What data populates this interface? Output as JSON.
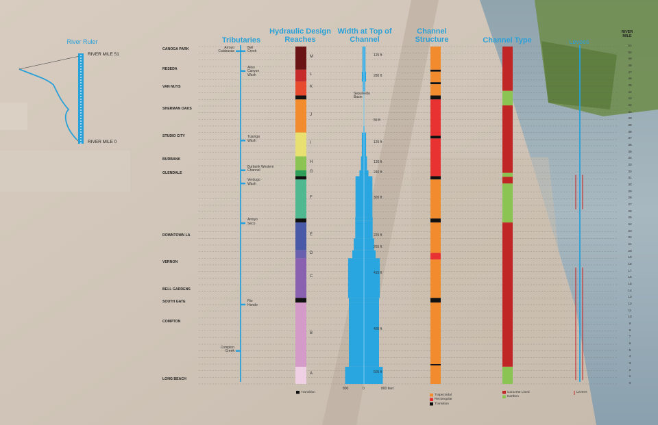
{
  "headers": {
    "river_ruler": "River Ruler",
    "tributaries": "Tributaries",
    "hydraulic": "Hydraulic Design\nReaches",
    "width": "Width at Top of\nChannel",
    "structure": "Channel\nStructure",
    "type": "Channel Type",
    "levees": "Levees",
    "river_mile": "RIVER\nMILE"
  },
  "ruler": {
    "top_label": "RIVER MILE 51",
    "bottom_label": "RIVER MILE 0"
  },
  "cities": [
    {
      "name": "CANOGA PARK",
      "mile": 50.5
    },
    {
      "name": "RESEDA",
      "mile": 47.5
    },
    {
      "name": "VAN NUYS",
      "mile": 44.8
    },
    {
      "name": "SHERMAN OAKS",
      "mile": 41.5
    },
    {
      "name": "STUDIO CITY",
      "mile": 37.3
    },
    {
      "name": "BURBANK",
      "mile": 33.8
    },
    {
      "name": "GLENDALE",
      "mile": 31.8
    },
    {
      "name": "DOWNTOWN LA",
      "mile": 22.3
    },
    {
      "name": "VERNON",
      "mile": 18.3
    },
    {
      "name": "BELL GARDENS",
      "mile": 14.2
    },
    {
      "name": "SOUTH GATE",
      "mile": 12.3
    },
    {
      "name": "COMPTON",
      "mile": 9.3
    },
    {
      "name": "LONG BEACH",
      "mile": 0.6
    }
  ],
  "tributaries": [
    {
      "name": "Arroyo\nCalabasas",
      "mile": 50.3,
      "side": "left"
    },
    {
      "name": "Bell\nCreek",
      "mile": 50.3,
      "side": "right"
    },
    {
      "name": "Aliso\nCanyon\nWash",
      "mile": 47.3,
      "side": "right"
    },
    {
      "name": "Tujunga\nWash",
      "mile": 36.8,
      "side": "right"
    },
    {
      "name": "Burbank Western\nChannel",
      "mile": 32.3,
      "side": "right"
    },
    {
      "name": "Verdugo\nWash",
      "mile": 30.3,
      "side": "right"
    },
    {
      "name": "Arroyo\nSeco",
      "mile": 24.3,
      "side": "right"
    },
    {
      "name": "Rio\nHondo",
      "mile": 12.0,
      "side": "right"
    },
    {
      "name": "Compton\nCreek",
      "mile": 5.0,
      "side": "left"
    }
  ],
  "chart_data": {
    "type": "table",
    "mile_range": [
      0,
      51
    ],
    "hydraulic_reaches": [
      {
        "label": "M",
        "from": 51,
        "to": 47.5,
        "color": "#6b1416"
      },
      {
        "label": "L",
        "from": 47.5,
        "to": 45.7,
        "color": "#c62a2a"
      },
      {
        "label": "K",
        "from": 45.7,
        "to": 43.6,
        "color": "#e84a2e"
      },
      {
        "label": "",
        "from": 43.6,
        "to": 43.0,
        "color": "#111111"
      },
      {
        "label": "J",
        "from": 43.0,
        "to": 38.0,
        "color": "#f28a2e"
      },
      {
        "label": "I",
        "from": 38.0,
        "to": 34.4,
        "color": "#e8e070"
      },
      {
        "label": "H",
        "from": 34.4,
        "to": 32.3,
        "color": "#8cc454"
      },
      {
        "label": "G",
        "from": 32.3,
        "to": 31.4,
        "color": "#2e9e58"
      },
      {
        "label": "",
        "from": 31.4,
        "to": 30.9,
        "color": "#111111"
      },
      {
        "label": "F",
        "from": 30.9,
        "to": 25.0,
        "color": "#4fb890"
      },
      {
        "label": "",
        "from": 25.0,
        "to": 24.4,
        "color": "#111111"
      },
      {
        "label": "E",
        "from": 24.4,
        "to": 20.2,
        "color": "#4a58a8"
      },
      {
        "label": "D",
        "from": 20.2,
        "to": 19.0,
        "color": "#6a60b0"
      },
      {
        "label": "C",
        "from": 19.0,
        "to": 13.0,
        "color": "#8a60b0"
      },
      {
        "label": "",
        "from": 13.0,
        "to": 12.3,
        "color": "#111111"
      },
      {
        "label": "B",
        "from": 12.3,
        "to": 2.6,
        "color": "#d49ac8"
      },
      {
        "label": "A",
        "from": 2.6,
        "to": 0,
        "color": "#f0d0e4"
      }
    ],
    "channel_width": [
      {
        "from": 51,
        "to": 47.2,
        "half_ft": 20
      },
      {
        "from": 47.2,
        "to": 45.7,
        "half_ft": 28
      },
      {
        "from": 45.7,
        "to": 44.2,
        "half_ft": 16
      },
      {
        "from": 44.2,
        "to": 39.0,
        "half_ft": 5
      },
      {
        "from": 39.0,
        "to": 38.0,
        "half_ft": 8
      },
      {
        "from": 38.0,
        "to": 34.4,
        "half_ft": 28
      },
      {
        "from": 34.4,
        "to": 32.3,
        "half_ft": 40
      },
      {
        "from": 32.3,
        "to": 31.4,
        "half_ft": 60
      },
      {
        "from": 31.4,
        "to": 25.2,
        "half_ft": 112
      },
      {
        "from": 25.2,
        "to": 24.7,
        "half_ft": 116
      },
      {
        "from": 24.7,
        "to": 22.0,
        "half_ft": 115
      },
      {
        "from": 22.0,
        "to": 20.2,
        "half_ft": 135
      },
      {
        "from": 20.2,
        "to": 19.0,
        "half_ft": 155
      },
      {
        "from": 19.0,
        "to": 13.0,
        "half_ft": 210
      },
      {
        "from": 13.0,
        "to": 12.3,
        "half_ft": 200
      },
      {
        "from": 12.3,
        "to": 2.6,
        "half_ft": 200
      },
      {
        "from": 2.6,
        "to": 0,
        "half_ft": 250
      }
    ],
    "width_labels": [
      {
        "text": "125 ft",
        "mile": 49.5
      },
      {
        "text": "280 ft",
        "mile": 46.3
      },
      {
        "text": "Sepulveda\nBasin",
        "mile": 43.7
      },
      {
        "text": "55 ft",
        "mile": 39.6
      },
      {
        "text": "125 ft",
        "mile": 36.3
      },
      {
        "text": "130 ft",
        "mile": 33.3
      },
      {
        "text": "240 ft",
        "mile": 31.8
      },
      {
        "text": "305 ft",
        "mile": 27.9
      },
      {
        "text": "225 ft",
        "mile": 22.2
      },
      {
        "text": "265 ft",
        "mile": 20.5
      },
      {
        "text": "415 ft",
        "mile": 16.6
      },
      {
        "text": "400 ft",
        "mile": 8.1
      },
      {
        "text": "505 ft",
        "mile": 1.6
      }
    ],
    "width_axis": [
      "800",
      "0",
      "800 feet"
    ],
    "channel_structure": [
      {
        "from": 51,
        "to": 47.5,
        "color": "#f28a2e"
      },
      {
        "from": 47.5,
        "to": 47.2,
        "color": "#111111"
      },
      {
        "from": 47.2,
        "to": 45.6,
        "color": "#f28a2e"
      },
      {
        "from": 45.6,
        "to": 45.3,
        "color": "#111111"
      },
      {
        "from": 45.3,
        "to": 43.6,
        "color": "#f28a2e"
      },
      {
        "from": 43.6,
        "to": 43.0,
        "color": "#111111"
      },
      {
        "from": 43.0,
        "to": 37.5,
        "color": "#e83232"
      },
      {
        "from": 37.5,
        "to": 37.1,
        "color": "#111111"
      },
      {
        "from": 37.1,
        "to": 31.4,
        "color": "#e83232"
      },
      {
        "from": 31.4,
        "to": 30.9,
        "color": "#111111"
      },
      {
        "from": 30.9,
        "to": 25.0,
        "color": "#f28a2e"
      },
      {
        "from": 25.0,
        "to": 24.4,
        "color": "#111111"
      },
      {
        "from": 24.4,
        "to": 19.8,
        "color": "#f28a2e"
      },
      {
        "from": 19.8,
        "to": 18.8,
        "color": "#e83232"
      },
      {
        "from": 18.8,
        "to": 13.0,
        "color": "#f28a2e"
      },
      {
        "from": 13.0,
        "to": 12.3,
        "color": "#111111"
      },
      {
        "from": 12.3,
        "to": 3.0,
        "color": "#f28a2e"
      },
      {
        "from": 3.0,
        "to": 2.8,
        "color": "#111111"
      },
      {
        "from": 2.8,
        "to": 0,
        "color": "#f28a2e"
      }
    ],
    "channel_type": [
      {
        "from": 51,
        "to": 44.3,
        "color": "#c02626"
      },
      {
        "from": 44.3,
        "to": 42.1,
        "color": "#8cc454"
      },
      {
        "from": 42.1,
        "to": 31.9,
        "color": "#c02626"
      },
      {
        "from": 31.9,
        "to": 31.3,
        "color": "#8cc454"
      },
      {
        "from": 31.3,
        "to": 30.3,
        "color": "#c02626"
      },
      {
        "from": 30.3,
        "to": 24.4,
        "color": "#8cc454"
      },
      {
        "from": 24.4,
        "to": 2.6,
        "color": "#c02626"
      },
      {
        "from": 2.6,
        "to": 0,
        "color": "#8cc454"
      }
    ],
    "levees": [
      {
        "offset": -6,
        "from": 31.6,
        "to": 26.4
      },
      {
        "offset": 4,
        "from": 31.6,
        "to": 26.4
      },
      {
        "offset": -6,
        "from": 17.6,
        "to": 0.6
      },
      {
        "offset": 4,
        "from": 17.6,
        "to": 0.6
      }
    ],
    "legends": {
      "hydraulic": [
        {
          "label": "Transition",
          "color": "#111111"
        }
      ],
      "structure": [
        {
          "label": "Trapezoidal",
          "color": "#f28a2e"
        },
        {
          "label": "Rectangular",
          "color": "#e83232"
        },
        {
          "label": "Transition",
          "color": "#111111"
        }
      ],
      "type": [
        {
          "label": "Concrete Lined",
          "color": "#c02626"
        },
        {
          "label": "Earthen",
          "color": "#8cc454"
        }
      ],
      "levees": [
        {
          "label": "Levees",
          "color": "#c02626"
        }
      ]
    },
    "mile_ticks": [
      "51",
      "50",
      "49",
      "48",
      "47",
      "46",
      "45",
      "44",
      "43",
      "42",
      "41",
      "40",
      "39",
      "38",
      "37",
      "36",
      "35",
      "34",
      "33",
      "32",
      "31",
      "30",
      "29",
      "28",
      "27",
      "26",
      "25",
      "24",
      "23",
      "22",
      "21",
      "20",
      "19",
      "18",
      "17",
      "16",
      "15",
      "14",
      "13",
      "12",
      "11",
      "10",
      "9",
      "8",
      "7",
      "6",
      "5",
      "4",
      "3",
      "2",
      "1",
      "0"
    ]
  }
}
